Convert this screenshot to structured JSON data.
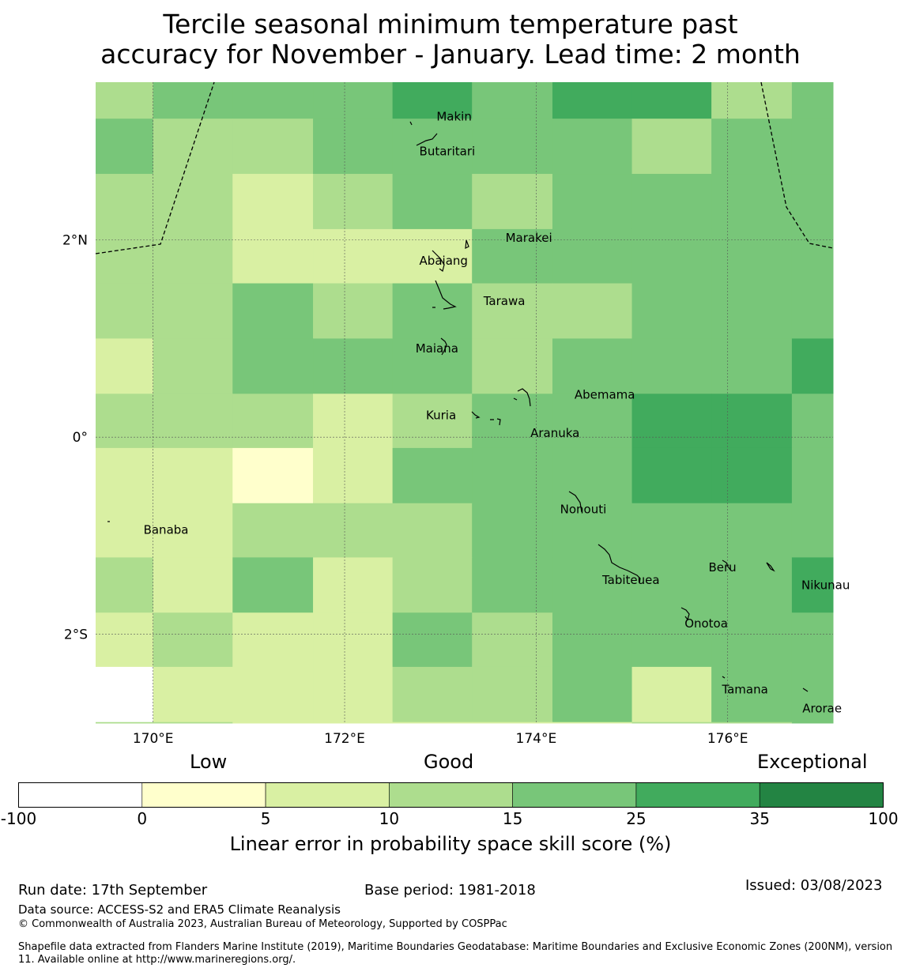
{
  "title": {
    "line1": "Tercile seasonal minimum temperature past",
    "line2": "accuracy for November - January. Lead time: 2 month"
  },
  "map": {
    "lon_range": [
      169.4,
      177.1
    ],
    "lat_range": [
      -2.9,
      3.6
    ],
    "x_ticks": [
      {
        "value": 170,
        "label": "170°E"
      },
      {
        "value": 172,
        "label": "172°E"
      },
      {
        "value": 174,
        "label": "174°E"
      },
      {
        "value": 176,
        "label": "176°E"
      }
    ],
    "y_ticks": [
      {
        "value": 2,
        "label": "2°N"
      },
      {
        "value": 0,
        "label": "0°"
      },
      {
        "value": -2,
        "label": "2°S"
      }
    ],
    "grid_lon_edges": [
      169.4,
      170.0,
      170.83,
      171.67,
      172.5,
      173.33,
      174.17,
      175.0,
      175.83,
      176.67,
      177.1
    ],
    "grid_lat_edges": [
      3.6,
      3.23,
      2.67,
      2.11,
      1.56,
      1.0,
      0.44,
      -0.11,
      -0.67,
      -1.22,
      -1.78,
      -2.33,
      -2.89,
      -2.9
    ],
    "cell_classes": [
      [
        3,
        4,
        4,
        4,
        5,
        4,
        5,
        5,
        3,
        4
      ],
      [
        4,
        3,
        3,
        4,
        4,
        4,
        4,
        3,
        4,
        4
      ],
      [
        3,
        3,
        2,
        3,
        4,
        3,
        4,
        4,
        4,
        4
      ],
      [
        3,
        3,
        2,
        2,
        2,
        4,
        4,
        4,
        4,
        4
      ],
      [
        3,
        3,
        4,
        3,
        4,
        3,
        3,
        4,
        4,
        4
      ],
      [
        2,
        3,
        4,
        4,
        4,
        3,
        4,
        4,
        4,
        5
      ],
      [
        3,
        3,
        3,
        2,
        3,
        4,
        4,
        5,
        5,
        4
      ],
      [
        2,
        2,
        1,
        2,
        4,
        4,
        4,
        5,
        5,
        4
      ],
      [
        2,
        2,
        3,
        3,
        3,
        4,
        4,
        4,
        4,
        4
      ],
      [
        3,
        2,
        4,
        2,
        3,
        4,
        4,
        4,
        4,
        5
      ],
      [
        2,
        3,
        2,
        2,
        4,
        3,
        4,
        4,
        4,
        4
      ],
      [
        0,
        2,
        2,
        2,
        3,
        3,
        4,
        2,
        4,
        4
      ],
      [
        3,
        3,
        2,
        2,
        2,
        2,
        2,
        3,
        3,
        4
      ]
    ],
    "islands": [
      {
        "name": "Makin",
        "lon": 172.96,
        "lat": 3.25
      },
      {
        "name": "Butaritari",
        "lon": 172.78,
        "lat": 2.9
      },
      {
        "name": "Marakei",
        "lon": 173.68,
        "lat": 2.02
      },
      {
        "name": "Abaiang",
        "lon": 172.78,
        "lat": 1.79
      },
      {
        "name": "Tarawa",
        "lon": 173.45,
        "lat": 1.38
      },
      {
        "name": "Maiana",
        "lon": 172.74,
        "lat": 0.9
      },
      {
        "name": "Abemama",
        "lon": 174.4,
        "lat": 0.43
      },
      {
        "name": "Kuria",
        "lon": 172.85,
        "lat": 0.22
      },
      {
        "name": "Aranuka",
        "lon": 173.94,
        "lat": 0.04
      },
      {
        "name": "Nonouti",
        "lon": 174.25,
        "lat": -0.73
      },
      {
        "name": "Banaba",
        "lon": 169.9,
        "lat": -0.94
      },
      {
        "name": "Beru",
        "lon": 175.8,
        "lat": -1.32
      },
      {
        "name": "Tabiteuea",
        "lon": 174.69,
        "lat": -1.45
      },
      {
        "name": "Nikunau",
        "lon": 176.77,
        "lat": -1.5
      },
      {
        "name": "Onotoa",
        "lon": 175.55,
        "lat": -1.89
      },
      {
        "name": "Tamana",
        "lon": 175.94,
        "lat": -2.56
      },
      {
        "name": "Arorae",
        "lon": 176.78,
        "lat": -2.75
      }
    ]
  },
  "colorbar": {
    "header_low": "Low",
    "header_good": "Good",
    "header_exceptional": "Exceptional",
    "colors": [
      "#ffffff",
      "#ffffcc",
      "#d9f0a3",
      "#addd8e",
      "#78c679",
      "#41ab5d",
      "#238443"
    ],
    "ticks": [
      "-100",
      "0",
      "5",
      "10",
      "15",
      "25",
      "35",
      "100"
    ],
    "label": "Linear error in probability space skill score (%)"
  },
  "footer": {
    "run_date": "Run date: 17th September",
    "base_period": "Base period: 1981-2018",
    "issued": "Issued: 03/08/2023",
    "data_source": "Data source: ACCESS-S2 and ERA5 Climate Reanalysis",
    "copyright": "© Commonwealth of Australia 2023, Australian Bureau of Meteorology, Supported by COSPPac",
    "shapefile": "Shapefile data extracted from Flanders Marine Institute (2019), Maritime Boundaries Geodatabase: Maritime Boundaries and Exclusive Economic Zones (200NM), version 11. Available online at http://www.marineregions.org/."
  }
}
